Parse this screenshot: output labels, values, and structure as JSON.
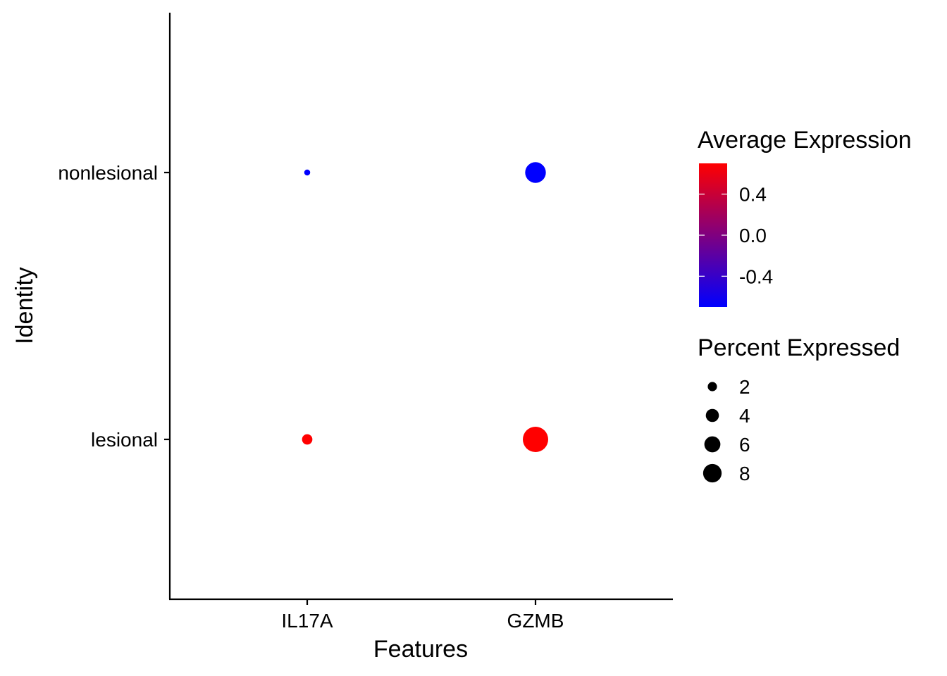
{
  "chart_data": {
    "type": "dot",
    "title": "",
    "xlabel": "Features",
    "ylabel": "Identity",
    "x_categories": [
      "IL17A",
      "GZMB"
    ],
    "y_categories": [
      "lesional",
      "nonlesional"
    ],
    "points": [
      {
        "feature": "IL17A",
        "identity": "nonlesional",
        "avg_exp": -0.7,
        "pct_exp": 0.5
      },
      {
        "feature": "GZMB",
        "identity": "nonlesional",
        "avg_exp": -0.7,
        "pct_exp": 6.0
      },
      {
        "feature": "IL17A",
        "identity": "lesional",
        "avg_exp": 0.7,
        "pct_exp": 1.5
      },
      {
        "feature": "GZMB",
        "identity": "lesional",
        "avg_exp": 0.7,
        "pct_exp": 9.0
      }
    ],
    "color_legend": {
      "title": "Average Expression",
      "low_color": "#0000FF",
      "high_color": "#FF0000",
      "range": [
        -0.7,
        0.7
      ],
      "ticks": [
        0.4,
        0.0,
        -0.4
      ],
      "tick_labels": [
        "0.4",
        "0.0",
        "-0.4"
      ]
    },
    "size_legend": {
      "title": "Percent Expressed",
      "values": [
        2,
        4,
        6,
        8
      ],
      "labels": [
        "2",
        "4",
        "6",
        "8"
      ]
    },
    "grid": false,
    "legend_position": "right"
  }
}
